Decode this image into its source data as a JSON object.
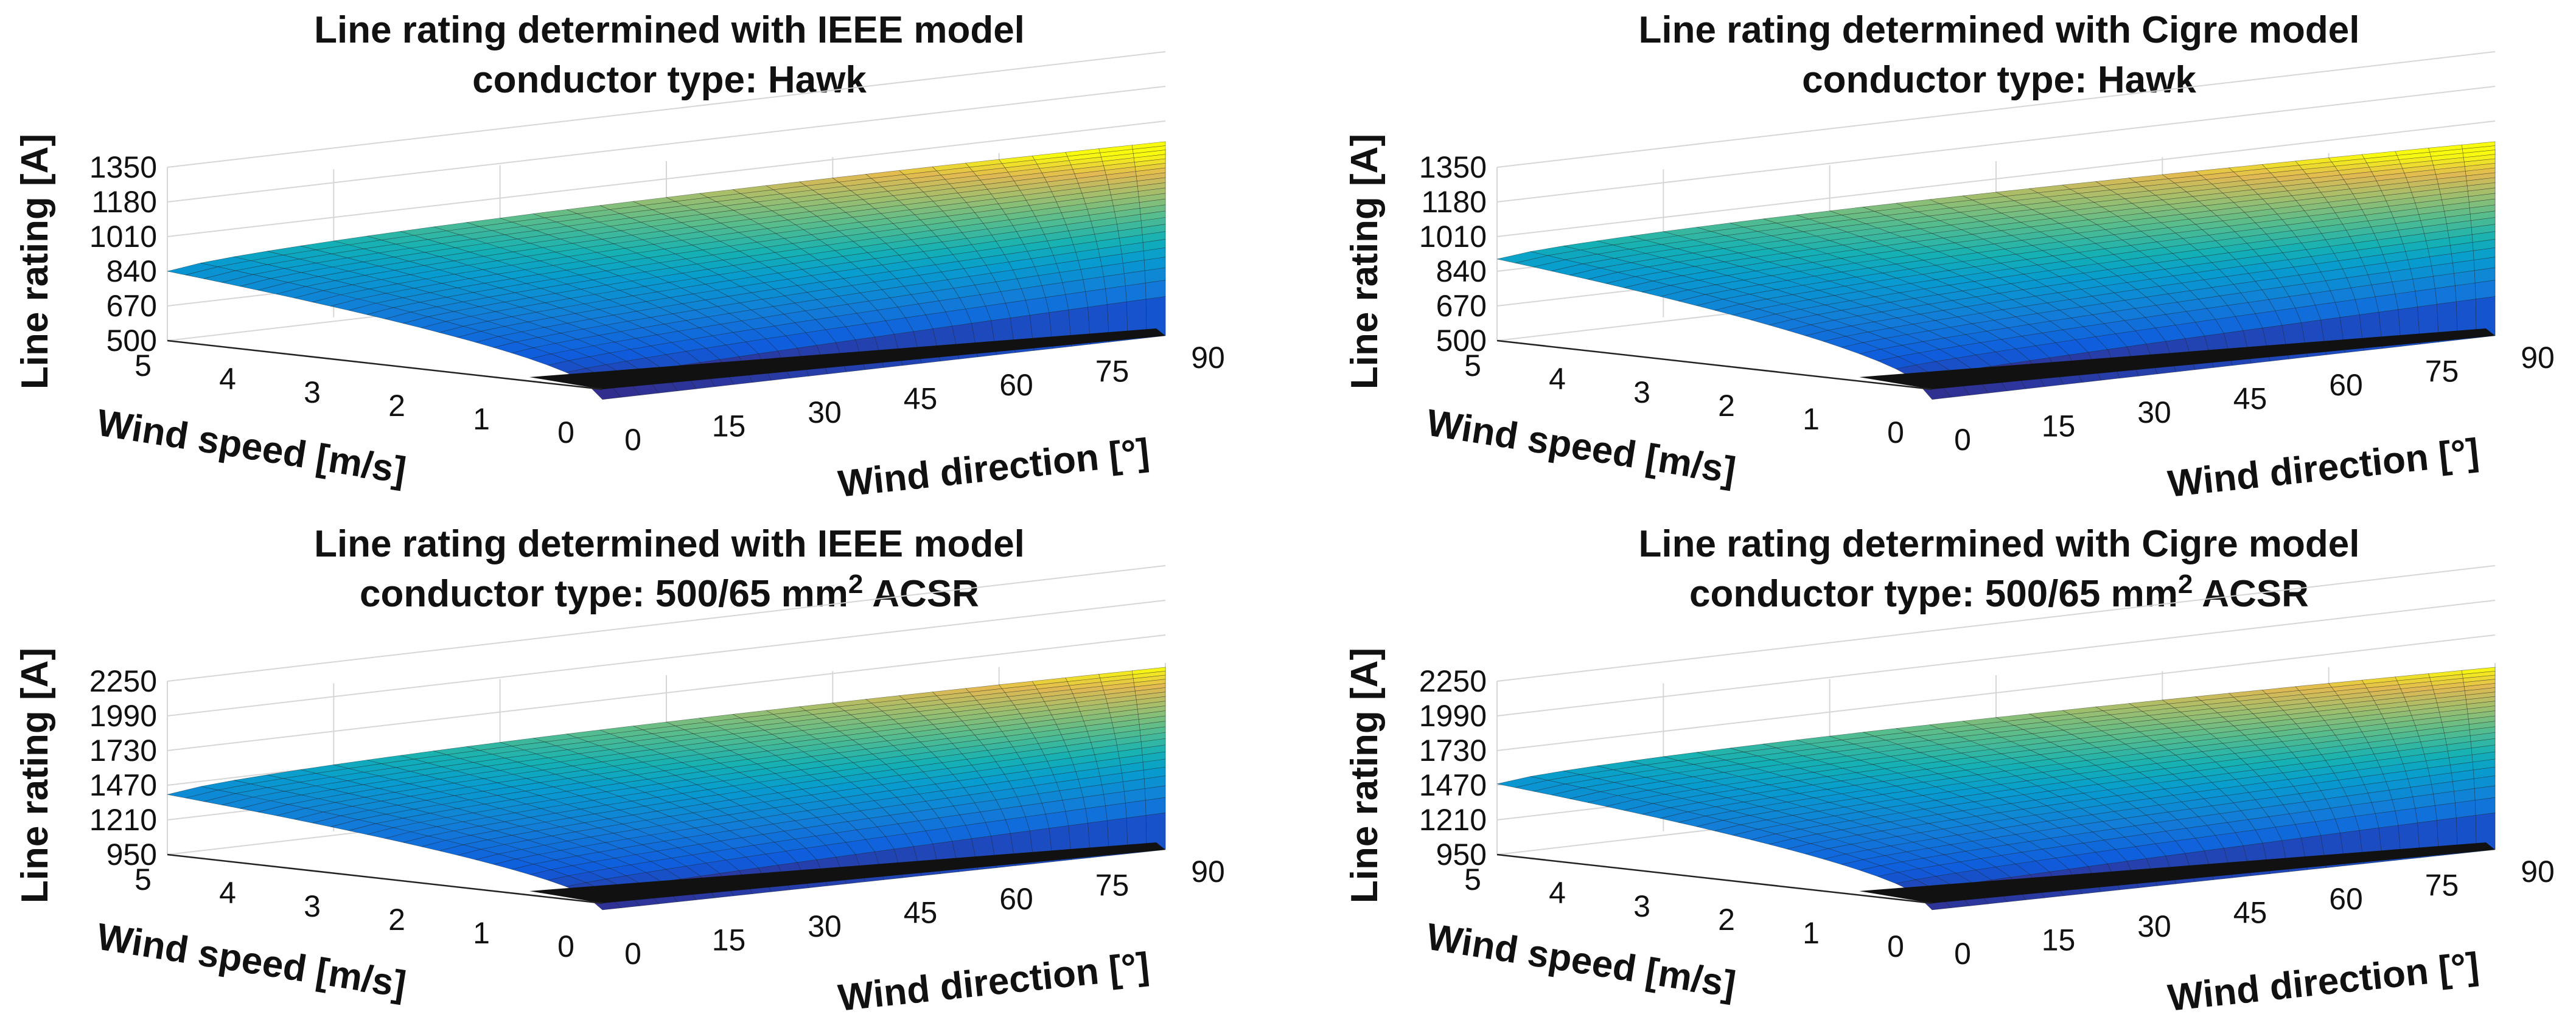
{
  "chart_data": [
    {
      "type": "surface",
      "title_line1": "Line rating determined with IEEE model",
      "title_line2": "conductor type: Hawk",
      "title_sup": "",
      "title_tail": "",
      "xlabel": "Wind direction [°]",
      "ylabel": "Wind speed [m/s]",
      "zlabel": "Line rating [A]",
      "x_ticks": [
        "0",
        "15",
        "30",
        "45",
        "60",
        "75",
        "90"
      ],
      "y_ticks": [
        "0",
        "1",
        "2",
        "3",
        "4",
        "5"
      ],
      "z_ticks": [
        "500",
        "670",
        "840",
        "1010",
        "1180",
        "1350"
      ],
      "xlim": [
        0,
        90
      ],
      "ylim": [
        0,
        5
      ],
      "zlim": [
        500,
        1350
      ],
      "colormap": "parula",
      "rating_at_zero_wind": 450,
      "corner_values": {
        "dir0_speed5": 840,
        "dir90_speed5": 1440,
        "dir90_speed0": 500,
        "dir0_speed0": 450
      },
      "grid": true
    },
    {
      "type": "surface",
      "title_line1": "Line rating determined with Cigre model",
      "title_line2": "conductor type: Hawk",
      "title_sup": "",
      "title_tail": "",
      "xlabel": "Wind direction [°]",
      "ylabel": "Wind speed [m/s]",
      "zlabel": "Line rating [A]",
      "x_ticks": [
        "0",
        "15",
        "30",
        "45",
        "60",
        "75",
        "90"
      ],
      "y_ticks": [
        "0",
        "1",
        "2",
        "3",
        "4",
        "5"
      ],
      "z_ticks": [
        "500",
        "670",
        "840",
        "1010",
        "1180",
        "1350"
      ],
      "xlim": [
        0,
        90
      ],
      "ylim": [
        0,
        5
      ],
      "zlim": [
        500,
        1350
      ],
      "colormap": "parula",
      "rating_at_zero_wind": 450,
      "corner_values": {
        "dir0_speed5": 900,
        "dir90_speed5": 1440,
        "dir90_speed0": 500,
        "dir0_speed0": 450
      },
      "grid": true
    },
    {
      "type": "surface",
      "title_line1": "Line rating determined with IEEE model",
      "title_line2": "conductor type: 500/65 mm",
      "title_sup": "2",
      "title_tail": " ACSR",
      "xlabel": "Wind direction [°]",
      "ylabel": "Wind speed [m/s]",
      "zlabel": "Line rating [A]",
      "x_ticks": [
        "0",
        "15",
        "30",
        "45",
        "60",
        "75",
        "90"
      ],
      "y_ticks": [
        "0",
        "1",
        "2",
        "3",
        "4",
        "5"
      ],
      "z_ticks": [
        "950",
        "1210",
        "1470",
        "1730",
        "1990",
        "2250"
      ],
      "xlim": [
        0,
        90
      ],
      "ylim": [
        0,
        5
      ],
      "zlim": [
        950,
        2250
      ],
      "colormap": "parula",
      "rating_at_zero_wind": 900,
      "corner_values": {
        "dir0_speed5": 1400,
        "dir90_speed5": 2300,
        "dir90_speed0": 950,
        "dir0_speed0": 900
      },
      "grid": true
    },
    {
      "type": "surface",
      "title_line1": "Line rating determined with Cigre model",
      "title_line2": "conductor type: 500/65 mm",
      "title_sup": "2",
      "title_tail": " ACSR",
      "xlabel": "Wind direction [°]",
      "ylabel": "Wind speed [m/s]",
      "zlabel": "Line rating [A]",
      "x_ticks": [
        "0",
        "15",
        "30",
        "45",
        "60",
        "75",
        "90"
      ],
      "y_ticks": [
        "0",
        "1",
        "2",
        "3",
        "4",
        "5"
      ],
      "z_ticks": [
        "950",
        "1210",
        "1470",
        "1730",
        "1990",
        "2250"
      ],
      "xlim": [
        0,
        90
      ],
      "ylim": [
        0,
        5
      ],
      "zlim": [
        950,
        2250
      ],
      "colormap": "parula",
      "rating_at_zero_wind": 900,
      "corner_values": {
        "dir0_speed5": 1480,
        "dir90_speed5": 2300,
        "dir90_speed0": 950,
        "dir0_speed0": 900
      },
      "grid": true
    }
  ]
}
